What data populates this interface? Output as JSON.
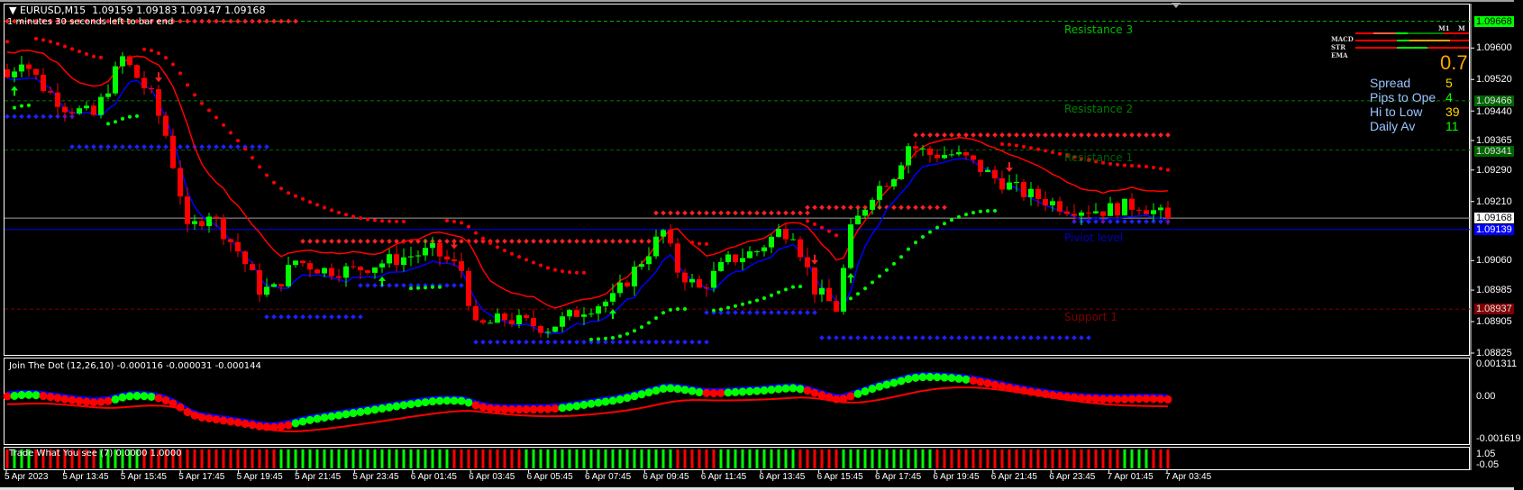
{
  "header": {
    "menu_icon": "triangle-down-icon",
    "symbol": "EURUSD,M15",
    "ohlc": "1.09159 1.09183 1.09147 1.09168",
    "timer": "1 minutes 30 seconds left to bar end"
  },
  "colors": {
    "bull": "#00ff00",
    "bear": "#ff0000",
    "pivot": "#0000ff",
    "resistance": "#008000",
    "support": "#800000",
    "price_line": "#a0a0a0"
  },
  "levels": [
    {
      "name": "Resistance 3",
      "price": 1.09668,
      "label_color": "#00c000",
      "axis": "1.09668",
      "axis_bg": "#00ff00",
      "axis_fg": "#000000",
      "style": "dash",
      "color": "#00c000"
    },
    {
      "name": "Resistance 2",
      "price": 1.09466,
      "label_color": "#008000",
      "axis": "1.09466",
      "axis_bg": "#006400",
      "axis_fg": "#e0e0e0",
      "style": "dash",
      "color": "#008000"
    },
    {
      "name": "Resistance 1",
      "price": 1.09341,
      "label_color": "#006000",
      "axis": "1.09341",
      "axis_bg": "#006400",
      "axis_fg": "#e0e0e0",
      "style": "dash",
      "color": "#006000"
    },
    {
      "name": "Piviot level",
      "price": 1.09139,
      "label_color": "#0000c0",
      "axis": "1.09139",
      "axis_bg": "#0000ff",
      "axis_fg": "#ffffff",
      "style": "solid",
      "color": "#0000ff"
    },
    {
      "name": "Support 1",
      "price": 1.08937,
      "label_color": "#800000",
      "axis": "1.08937",
      "axis_bg": "#800000",
      "axis_fg": "#e0e0e0",
      "style": "dash",
      "color": "#800000"
    }
  ],
  "current_price": {
    "price": 1.09168,
    "axis": "1.09168"
  },
  "price_axis": [
    "1.09600",
    "1.09520",
    "1.09440",
    "1.09365",
    "1.09290",
    "1.09210",
    "1.09060",
    "1.08985",
    "1.08905",
    "1.08825"
  ],
  "time_axis": [
    "5 Apr 2023",
    "5 Apr 13:45",
    "5 Apr 15:45",
    "5 Apr 17:45",
    "5 Apr 19:45",
    "5 Apr 21:45",
    "5 Apr 23:45",
    "6 Apr 01:45",
    "6 Apr 03:45",
    "6 Apr 05:45",
    "6 Apr 07:45",
    "6 Apr 09:45",
    "6 Apr 11:45",
    "6 Apr 13:45",
    "6 Apr 15:45",
    "6 Apr 17:45",
    "6 Apr 19:45",
    "6 Apr 21:45",
    "6 Apr 23:45",
    "7 Apr 01:45",
    "7 Apr 03:45"
  ],
  "dashboard": {
    "big_value": "0.7",
    "rows": [
      {
        "label": "Spread",
        "value": "5",
        "color": "#ffd700"
      },
      {
        "label": "Pips to Ope",
        "value": "4",
        "color": "#00ff00"
      },
      {
        "label": "Hi to Low",
        "value": "39",
        "color": "#ffd700"
      },
      {
        "label": "Daily Av",
        "value": "11",
        "color": "#00ff00"
      }
    ],
    "mini_labels": [
      "MACD",
      "STR",
      "EMA"
    ],
    "tf_labels": [
      "M1",
      "M"
    ]
  },
  "indicators": {
    "macd": {
      "label": "Join The Dot (12,26,10) -0.000116 -0.000031 -0.000144",
      "axis": [
        "0.001311",
        "0.00",
        "-0.001619"
      ],
      "ylim": [
        -0.001619,
        0.001311
      ]
    },
    "tw": {
      "label": "Trade What You see (7) 0.0000 1.0000",
      "axis": [
        "1.05",
        "-0.05"
      ]
    }
  },
  "chart_data": {
    "type": "candlestick",
    "symbol": "EURUSD",
    "timeframe": "M15",
    "ylim": [
      1.08825,
      1.0968
    ],
    "close_path": [
      [
        0,
        1.09526
      ],
      [
        2,
        1.09575
      ],
      [
        5,
        1.09501
      ],
      [
        8,
        1.09452
      ],
      [
        12,
        1.09428
      ],
      [
        16,
        1.09575
      ],
      [
        20,
        1.09477
      ],
      [
        22,
        1.09379
      ],
      [
        24,
        1.09232
      ],
      [
        25,
        1.09134
      ],
      [
        28,
        1.09183
      ],
      [
        32,
        1.09085
      ],
      [
        35,
        1.08987
      ],
      [
        37,
        1.08987
      ],
      [
        40,
        1.0906
      ],
      [
        44,
        1.09036
      ],
      [
        48,
        1.09036
      ],
      [
        53,
        1.0906
      ],
      [
        59,
        1.09085
      ],
      [
        63,
        1.09036
      ],
      [
        65,
        1.08889
      ],
      [
        69,
        1.08913
      ],
      [
        75,
        1.08889
      ],
      [
        80,
        1.08938
      ],
      [
        84,
        1.08962
      ],
      [
        88,
        1.0906
      ],
      [
        91,
        1.09134
      ],
      [
        93,
        1.09036
      ],
      [
        96,
        1.08987
      ],
      [
        100,
        1.0906
      ],
      [
        104,
        1.09085
      ],
      [
        107,
        1.09134
      ],
      [
        109,
        1.09134
      ],
      [
        112,
        1.08987
      ],
      [
        115,
        1.08938
      ],
      [
        117,
        1.09134
      ],
      [
        120,
        1.09232
      ],
      [
        123,
        1.09281
      ],
      [
        125,
        1.09354
      ],
      [
        128,
        1.0933
      ],
      [
        131,
        1.0933
      ],
      [
        133,
        1.09318
      ],
      [
        137,
        1.09269
      ],
      [
        141,
        1.09232
      ],
      [
        147,
        1.09195
      ],
      [
        152,
        1.09188
      ],
      [
        157,
        1.09203
      ],
      [
        161,
        1.09168
      ]
    ],
    "fractal_resistance": [
      [
        0,
        40,
        1.09668
      ],
      [
        41,
        90,
        1.09109
      ],
      [
        90,
        111,
        1.09181
      ],
      [
        111,
        130,
        1.09195
      ],
      [
        126,
        161,
        1.09379
      ]
    ],
    "fractal_support": [
      [
        0,
        9,
        1.09426
      ],
      [
        9,
        36,
        1.09349
      ],
      [
        36,
        49,
        1.08917
      ],
      [
        49,
        64,
        1.08997
      ],
      [
        65,
        97,
        1.08853
      ],
      [
        97,
        112,
        1.08928
      ],
      [
        113,
        150,
        1.08864
      ],
      [
        148,
        161,
        1.09159
      ]
    ],
    "sell_arrows": [
      21,
      62,
      112,
      139
    ],
    "buy_arrows": [
      1,
      52,
      84,
      117
    ]
  }
}
